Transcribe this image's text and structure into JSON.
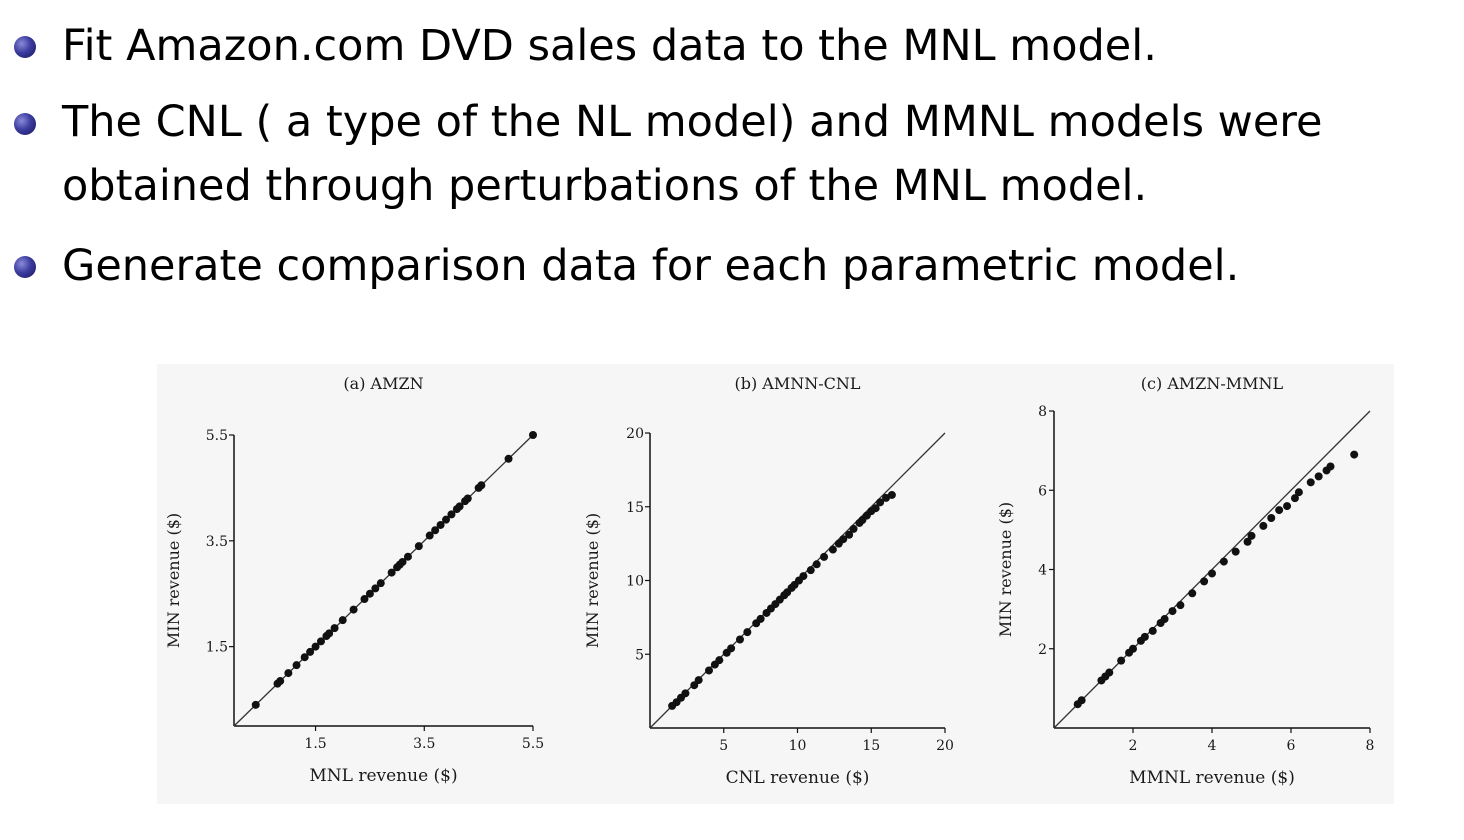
{
  "bullets": [
    "Fit Amazon.com DVD sales data to the MNL model.",
    "The CNL ( a type of the NL model) and MMNL models were obtained through perturbations of the MNL model.",
    "Generate comparison data for each parametric model."
  ],
  "colors": {
    "bullet": "#2e2e8f",
    "figure_bg": "#f6f6f6",
    "ink": "#111111"
  },
  "chart_data": [
    {
      "type": "scatter",
      "title": "(a) AMZN",
      "xlabel": "MNL revenue ($)",
      "ylabel": "MIN revenue ($)",
      "xlim": [
        0,
        5.5
      ],
      "ylim": [
        0,
        5.5
      ],
      "xticks": [
        "1.5",
        "3.5",
        "5.5"
      ],
      "yticks": [
        "1.5",
        "3.5",
        "5.5"
      ],
      "reference_line": "y = x",
      "points": [
        [
          0.4,
          0.4
        ],
        [
          0.8,
          0.8
        ],
        [
          0.85,
          0.85
        ],
        [
          1.0,
          1.0
        ],
        [
          1.15,
          1.15
        ],
        [
          1.3,
          1.3
        ],
        [
          1.4,
          1.4
        ],
        [
          1.5,
          1.5
        ],
        [
          1.6,
          1.6
        ],
        [
          1.7,
          1.7
        ],
        [
          1.75,
          1.75
        ],
        [
          1.85,
          1.85
        ],
        [
          2.0,
          2.0
        ],
        [
          2.2,
          2.2
        ],
        [
          2.4,
          2.4
        ],
        [
          2.5,
          2.5
        ],
        [
          2.6,
          2.6
        ],
        [
          2.7,
          2.7
        ],
        [
          2.9,
          2.9
        ],
        [
          3.0,
          3.0
        ],
        [
          3.05,
          3.05
        ],
        [
          3.1,
          3.1
        ],
        [
          3.2,
          3.2
        ],
        [
          3.4,
          3.4
        ],
        [
          3.6,
          3.6
        ],
        [
          3.7,
          3.7
        ],
        [
          3.8,
          3.8
        ],
        [
          3.9,
          3.9
        ],
        [
          4.0,
          4.0
        ],
        [
          4.1,
          4.1
        ],
        [
          4.15,
          4.15
        ],
        [
          4.25,
          4.25
        ],
        [
          4.3,
          4.3
        ],
        [
          4.5,
          4.5
        ],
        [
          4.55,
          4.55
        ],
        [
          5.05,
          5.05
        ],
        [
          5.5,
          5.5
        ]
      ]
    },
    {
      "type": "scatter",
      "title": "(b) AMNN-CNL",
      "xlabel": "CNL revenue ($)",
      "ylabel": "MIN revenue ($)",
      "xlim": [
        0,
        20
      ],
      "ylim": [
        0,
        20
      ],
      "xticks": [
        "5",
        "10",
        "15",
        "20"
      ],
      "yticks": [
        "5",
        "10",
        "15",
        "20"
      ],
      "reference_line": "y = x",
      "points": [
        [
          1.5,
          1.5
        ],
        [
          1.8,
          1.75
        ],
        [
          2.1,
          2.05
        ],
        [
          2.4,
          2.35
        ],
        [
          3.0,
          2.9
        ],
        [
          3.3,
          3.25
        ],
        [
          4.0,
          3.9
        ],
        [
          4.4,
          4.3
        ],
        [
          4.7,
          4.6
        ],
        [
          5.2,
          5.1
        ],
        [
          5.5,
          5.4
        ],
        [
          6.1,
          6.0
        ],
        [
          6.6,
          6.5
        ],
        [
          7.2,
          7.1
        ],
        [
          7.5,
          7.4
        ],
        [
          7.9,
          7.8
        ],
        [
          8.2,
          8.1
        ],
        [
          8.5,
          8.4
        ],
        [
          8.8,
          8.7
        ],
        [
          9.1,
          9.0
        ],
        [
          9.3,
          9.2
        ],
        [
          9.6,
          9.5
        ],
        [
          9.8,
          9.7
        ],
        [
          10.1,
          10.0
        ],
        [
          10.4,
          10.3
        ],
        [
          10.9,
          10.7
        ],
        [
          11.3,
          11.1
        ],
        [
          11.8,
          11.6
        ],
        [
          12.4,
          12.1
        ],
        [
          12.8,
          12.5
        ],
        [
          13.1,
          12.8
        ],
        [
          13.5,
          13.1
        ],
        [
          13.8,
          13.5
        ],
        [
          14.2,
          13.9
        ],
        [
          14.4,
          14.1
        ],
        [
          14.7,
          14.4
        ],
        [
          15.0,
          14.7
        ],
        [
          15.3,
          14.9
        ],
        [
          15.6,
          15.3
        ],
        [
          16.0,
          15.6
        ],
        [
          16.4,
          15.8
        ]
      ]
    },
    {
      "type": "scatter",
      "title": "(c) AMZN-MMNL",
      "xlabel": "MMNL revenue ($)",
      "ylabel": "MIN revenue ($)",
      "xlim": [
        0,
        8
      ],
      "ylim": [
        0,
        8
      ],
      "xticks": [
        "2",
        "4",
        "6",
        "8"
      ],
      "yticks": [
        "2",
        "4",
        "6",
        "8"
      ],
      "reference_line": "y = x",
      "points": [
        [
          0.6,
          0.6
        ],
        [
          0.7,
          0.7
        ],
        [
          1.2,
          1.2
        ],
        [
          1.3,
          1.3
        ],
        [
          1.4,
          1.4
        ],
        [
          1.7,
          1.7
        ],
        [
          1.9,
          1.9
        ],
        [
          2.0,
          2.0
        ],
        [
          2.2,
          2.2
        ],
        [
          2.3,
          2.3
        ],
        [
          2.5,
          2.45
        ],
        [
          2.7,
          2.65
        ],
        [
          2.8,
          2.75
        ],
        [
          3.0,
          2.95
        ],
        [
          3.2,
          3.1
        ],
        [
          3.5,
          3.4
        ],
        [
          3.8,
          3.7
        ],
        [
          4.0,
          3.9
        ],
        [
          4.3,
          4.2
        ],
        [
          4.6,
          4.45
        ],
        [
          4.9,
          4.7
        ],
        [
          5.0,
          4.85
        ],
        [
          5.3,
          5.1
        ],
        [
          5.5,
          5.3
        ],
        [
          5.7,
          5.5
        ],
        [
          5.9,
          5.6
        ],
        [
          6.1,
          5.8
        ],
        [
          6.2,
          5.95
        ],
        [
          6.5,
          6.2
        ],
        [
          6.7,
          6.35
        ],
        [
          6.9,
          6.5
        ],
        [
          7.0,
          6.6
        ],
        [
          7.6,
          6.9
        ]
      ]
    }
  ]
}
